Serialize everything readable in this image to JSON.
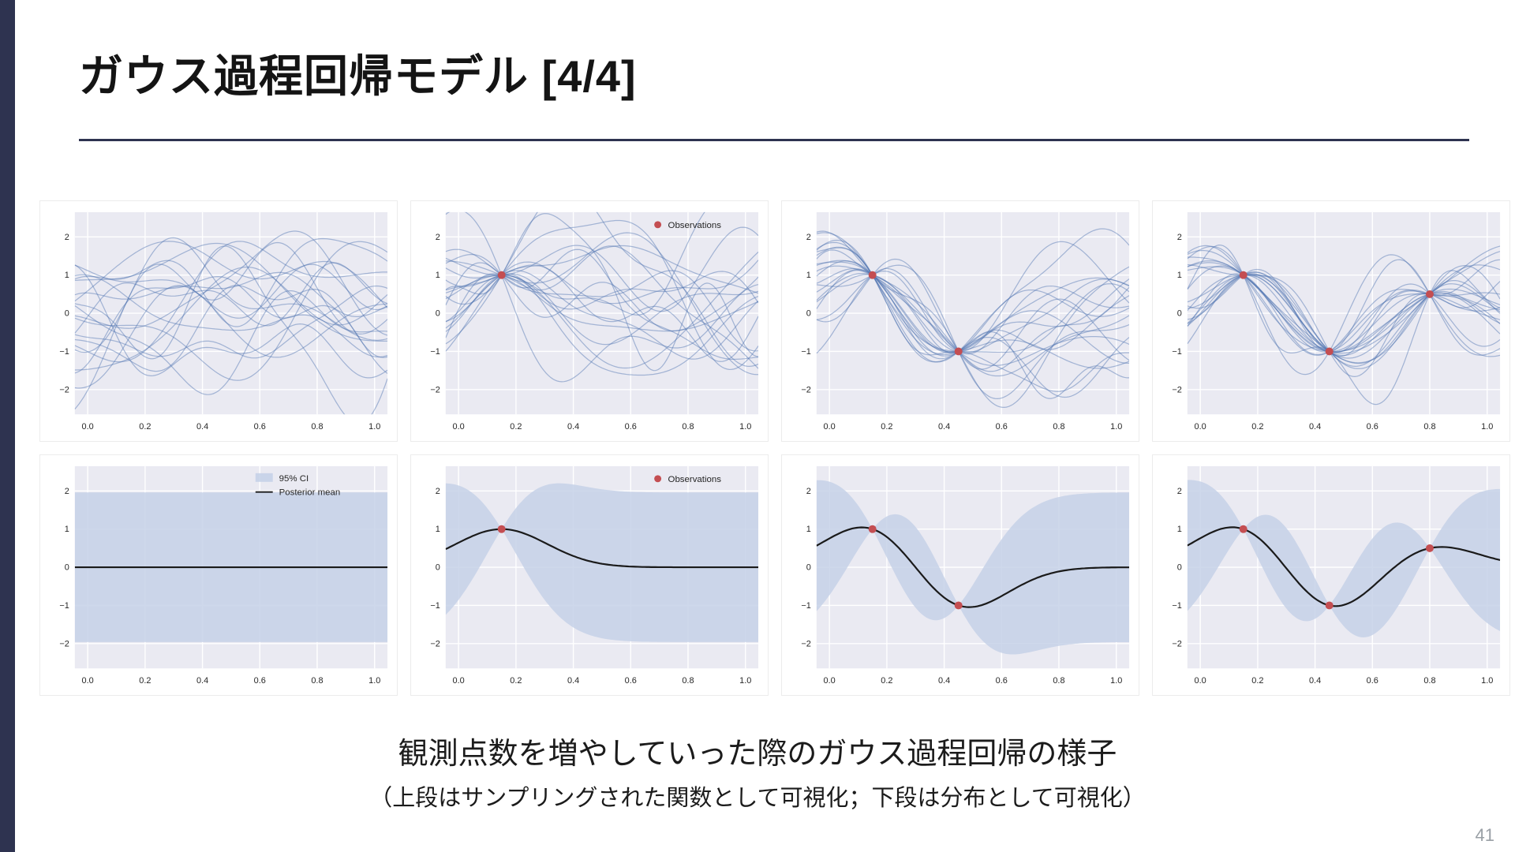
{
  "slide": {
    "title": "ガウス過程回帰モデル [4/4]",
    "caption_line1": "観測点数を増やしていった際のガウス過程回帰の様子",
    "caption_line2": "（上段はサンプリングされた関数として可視化；下段は分布として可視化）",
    "page_number": "41"
  },
  "chart_data": {
    "type": "line",
    "description": "Gaussian process regression: top row shows 20 posterior sample functions, bottom row shows posterior mean with 95% CI band, as observations increase from 0 to 3.",
    "x_ticks": [
      0,
      0.2,
      0.4,
      0.6,
      0.8,
      1
    ],
    "y_ticks": [
      -2,
      -1,
      0,
      1,
      2
    ],
    "xlim": [
      -0.045,
      1.045
    ],
    "ylim": [
      -2.65,
      2.65
    ],
    "grid": true,
    "gp": {
      "kernel": "rbf",
      "lengthscale": 0.16,
      "variance": 1.0,
      "n_samples": 20,
      "basis": 60,
      "ci_z": 1.96
    },
    "legend": {
      "observations": "Observations",
      "ci": "95% CI",
      "mean": "Posterior mean"
    },
    "colors": {
      "accent": "#2e3350",
      "sample_line": "#4c72b0",
      "observation": "#c44e52",
      "mean_line": "#1a1a1a",
      "ci_fill": "#c5d1e8",
      "plot_bg": "#eaeaf2",
      "grid": "#ffffff"
    },
    "panels": [
      {
        "name": "gp-samples-prior",
        "kind": "samples",
        "seed": 3,
        "observations": [],
        "legend": []
      },
      {
        "name": "gp-samples-1obs",
        "kind": "samples",
        "seed": 17,
        "observations": [
          [
            0.15,
            1.0
          ]
        ],
        "legend": [
          "observations"
        ]
      },
      {
        "name": "gp-samples-2obs",
        "kind": "samples",
        "seed": 29,
        "observations": [
          [
            0.15,
            1.0
          ],
          [
            0.45,
            -1.0
          ]
        ],
        "legend": []
      },
      {
        "name": "gp-samples-3obs",
        "kind": "samples",
        "seed": 41,
        "observations": [
          [
            0.15,
            1.0
          ],
          [
            0.45,
            -1.0
          ],
          [
            0.8,
            0.5
          ]
        ],
        "legend": []
      },
      {
        "name": "gp-posterior-prior",
        "kind": "posterior",
        "seed": 0,
        "observations": [],
        "legend": [
          "ci",
          "mean"
        ]
      },
      {
        "name": "gp-posterior-1obs",
        "kind": "posterior",
        "seed": 0,
        "observations": [
          [
            0.15,
            1.0
          ]
        ],
        "legend": [
          "observations"
        ]
      },
      {
        "name": "gp-posterior-2obs",
        "kind": "posterior",
        "seed": 0,
        "observations": [
          [
            0.15,
            1.0
          ],
          [
            0.45,
            -1.0
          ]
        ],
        "legend": []
      },
      {
        "name": "gp-posterior-3obs",
        "kind": "posterior",
        "seed": 0,
        "observations": [
          [
            0.15,
            1.0
          ],
          [
            0.45,
            -1.0
          ],
          [
            0.8,
            0.5
          ]
        ],
        "legend": []
      }
    ]
  }
}
